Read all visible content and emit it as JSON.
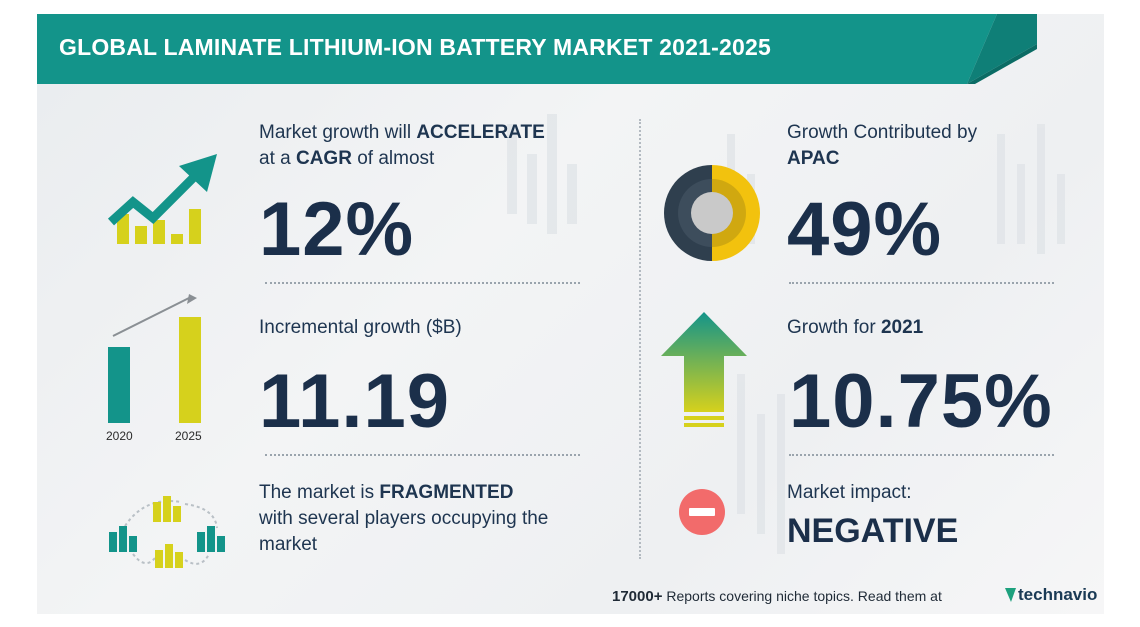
{
  "title": "GLOBAL LAMINATE LITHIUM-ION BATTERY MARKET 2021-2025",
  "colors": {
    "teal": "#13948a",
    "yellow": "#d6d11c",
    "navy": "#1b2f4a",
    "red": "#f26b6b"
  },
  "cagr": {
    "line1_pre": "Market growth will ",
    "line1_bold": "ACCELERATE",
    "line2_pre": "at a ",
    "line2_bold": "CAGR",
    "line2_post": " of almost",
    "value": "12%",
    "icon": "trending-up-chart-icon"
  },
  "incremental": {
    "label": "Incremental growth ($B)",
    "value": "11.19",
    "year_start": "2020",
    "year_end": "2025",
    "icon": "bar-growth-icon"
  },
  "fragmented": {
    "line1_pre": "The market is ",
    "line1_bold": "FRAGMENTED",
    "line2": "with several players occupying the",
    "line3": "market",
    "icon": "buildings-network-icon"
  },
  "apac": {
    "line1": "Growth Contributed by",
    "line2_bold": "APAC",
    "value": "49%",
    "icon": "donut-chart-icon"
  },
  "yoy": {
    "label_pre": "Growth for ",
    "label_bold": "2021",
    "value": "10.75%",
    "icon": "up-arrow-icon"
  },
  "impact": {
    "label": "Market impact:",
    "value": "NEGATIVE",
    "icon": "minus-circle-icon"
  },
  "footer": {
    "count": "17000+",
    "text": "Reports covering niche topics. Read them at",
    "brand": "technavio"
  }
}
